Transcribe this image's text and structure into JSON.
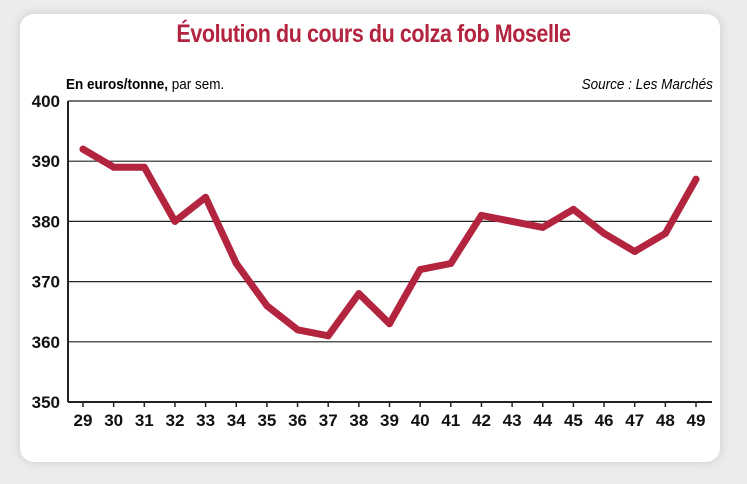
{
  "colors": {
    "line": "#b3243f",
    "title": "#b3243f",
    "text": "#111111",
    "grid": "#222222",
    "background": "#ffffff"
  },
  "header": {
    "title": "Évolution du cours du colza fob Moselle",
    "unit_bold": "En euros/tonne,",
    "unit_rest": " par sem.",
    "source": "Source : Les Marchés"
  },
  "chart_data": {
    "type": "line",
    "title": "Évolution du cours du colza fob Moselle",
    "xlabel": "",
    "ylabel": "En euros/tonne, par sem.",
    "ylim": [
      350,
      400
    ],
    "yticks": [
      350,
      360,
      370,
      380,
      390,
      400
    ],
    "grid": true,
    "x": [
      "29",
      "30",
      "31",
      "32",
      "33",
      "34",
      "35",
      "36",
      "37",
      "38",
      "39",
      "40",
      "41",
      "42",
      "43",
      "44",
      "45",
      "46",
      "47",
      "48",
      "49"
    ],
    "series": [
      {
        "values": [
          392,
          389,
          389,
          380,
          384,
          373,
          366,
          362,
          361,
          368,
          363,
          372,
          373,
          381,
          380,
          379,
          382,
          378,
          375,
          378,
          387
        ]
      }
    ]
  }
}
